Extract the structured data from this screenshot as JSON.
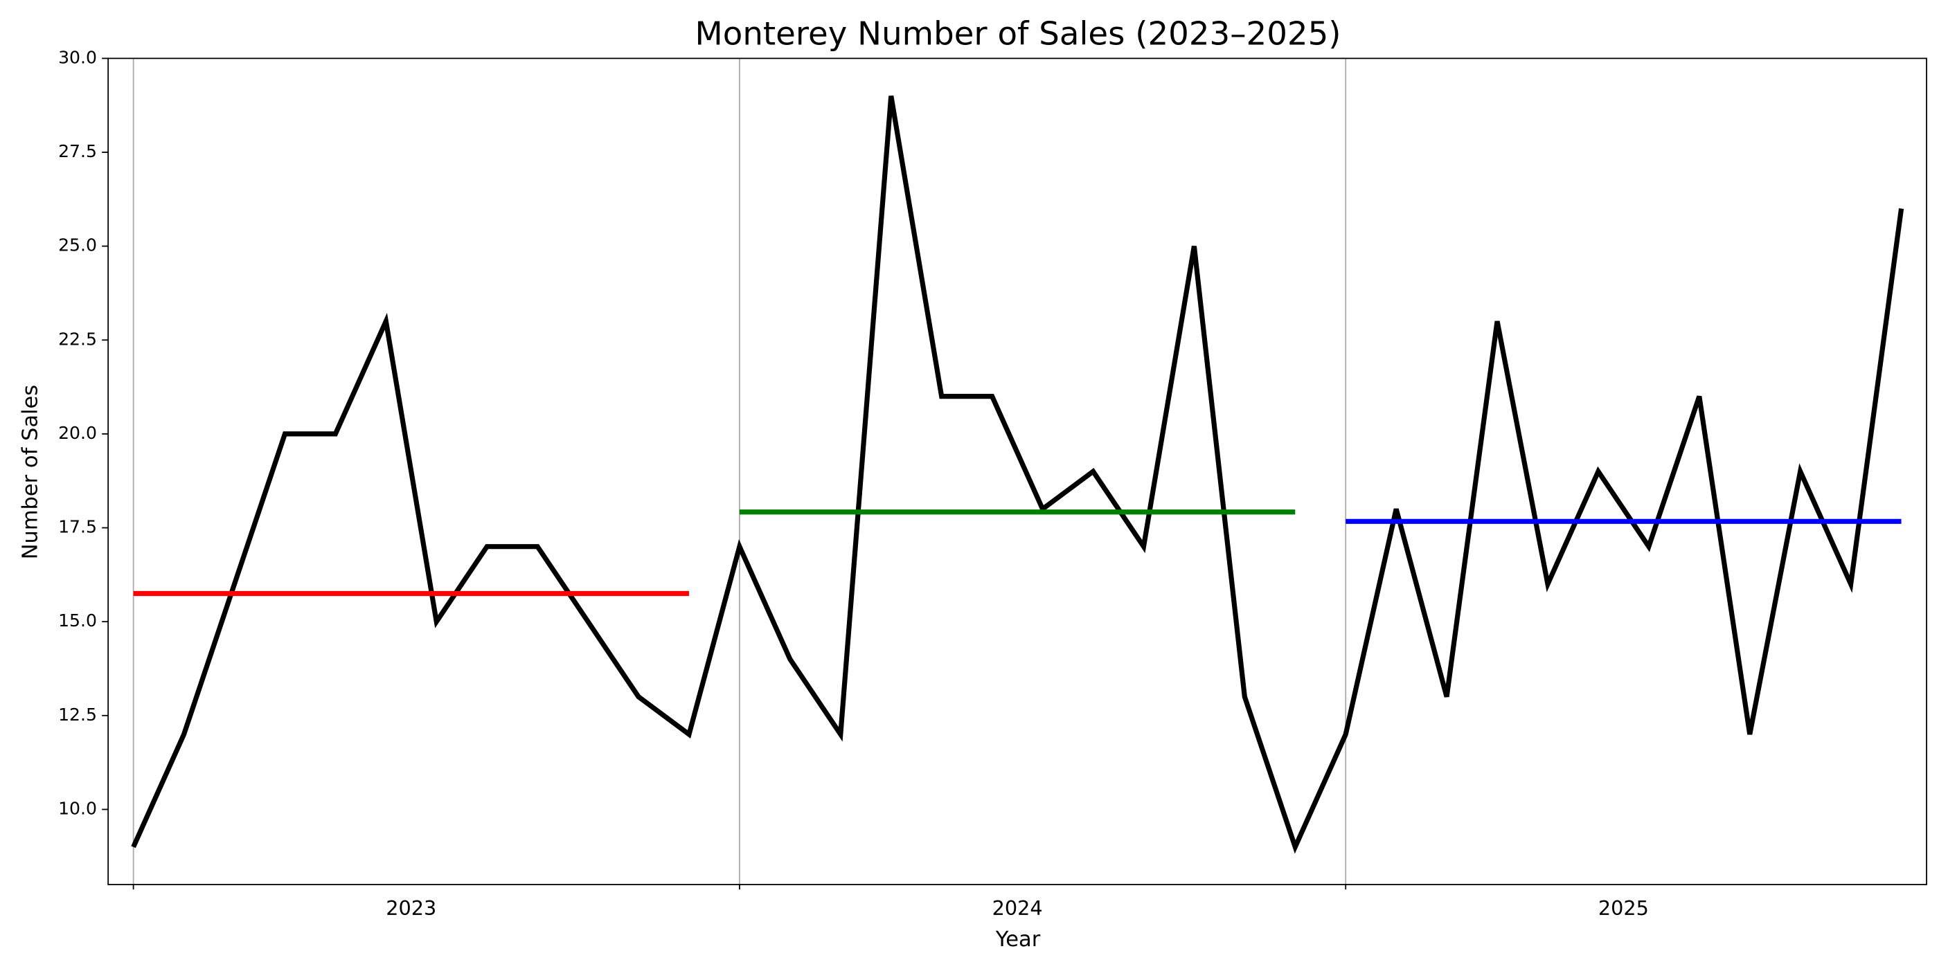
{
  "chart_data": {
    "type": "line",
    "title": "Monterey Number of Sales (2023–2025)",
    "x_label": "Year",
    "y_label": "Number of Sales",
    "year_labels": [
      "2023",
      "2024",
      "2025"
    ],
    "categories": [
      null,
      null,
      null,
      null,
      null,
      null,
      null,
      null,
      null,
      null,
      null,
      null,
      null,
      null,
      null,
      null,
      null,
      null,
      null,
      null,
      null,
      null,
      null,
      null,
      null,
      null,
      null,
      null,
      null,
      null,
      null,
      null,
      null,
      null,
      null,
      null
    ],
    "series": [
      {
        "color": "#000000",
        "values": [
          9,
          12,
          16,
          20,
          20,
          23,
          15,
          17,
          17,
          15,
          13,
          12,
          17,
          14,
          12,
          29,
          21,
          21,
          18,
          19,
          17,
          25,
          13,
          9,
          12,
          18,
          13,
          23,
          16,
          19,
          17,
          21,
          12,
          19,
          16,
          26
        ]
      }
    ],
    "means": [
      {
        "color": "#ff0000",
        "value": 15.75
      },
      {
        "color": "#008000",
        "value": 17.92
      },
      {
        "color": "#0000ff",
        "value": 17.67
      }
    ],
    "ylim": [
      8,
      30
    ],
    "yticks": [
      {
        "value": 10,
        "label": "10.0"
      },
      {
        "value": 12.5,
        "label": "12.5"
      },
      {
        "value": 15,
        "label": "15.0"
      },
      {
        "value": 17.5,
        "label": "17.5"
      },
      {
        "value": 20,
        "label": "20.0"
      },
      {
        "value": 22.5,
        "label": "22.5"
      },
      {
        "value": 25,
        "label": "25.0"
      },
      {
        "value": 27.5,
        "label": "27.5"
      },
      {
        "value": 30,
        "label": "30.0"
      }
    ]
  }
}
